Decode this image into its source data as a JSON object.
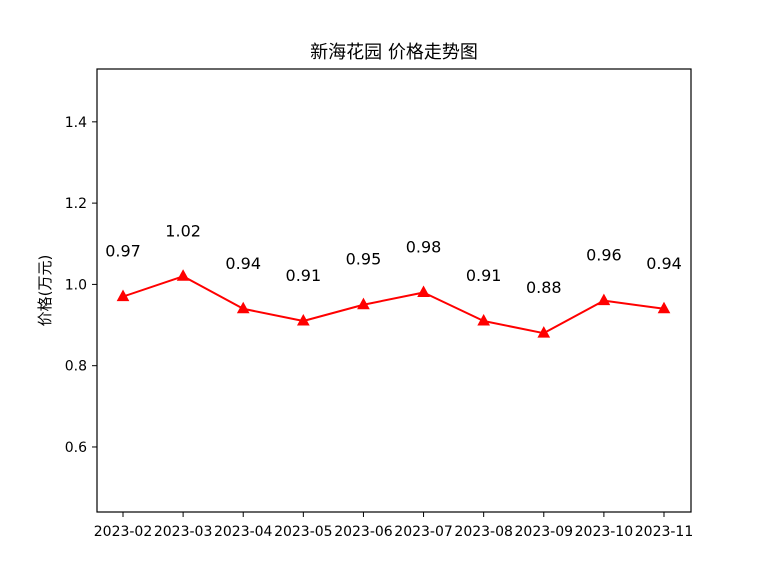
{
  "chart_data": {
    "type": "line",
    "title": "新海花园 价格走势图",
    "xlabel": "",
    "ylabel": "价格(万元)",
    "ylim": [
      0.44,
      1.53
    ],
    "y_ticks": [
      "0.6",
      "0.8",
      "1.0",
      "1.2",
      "1.4"
    ],
    "y_tick_values": [
      0.6,
      0.8,
      1.0,
      1.2,
      1.4
    ],
    "categories": [
      "2023-02",
      "2023-03",
      "2023-04",
      "2023-05",
      "2023-06",
      "2023-07",
      "2023-08",
      "2023-09",
      "2023-10",
      "2023-11"
    ],
    "series": [
      {
        "values": [
          0.97,
          1.02,
          0.94,
          0.91,
          0.95,
          0.98,
          0.91,
          0.88,
          0.96,
          0.94
        ],
        "labels": [
          "0.97",
          "1.02",
          "0.94",
          "0.91",
          "0.95",
          "0.98",
          "0.91",
          "0.88",
          "0.96",
          "0.94"
        ],
        "color": "#ff0000",
        "marker": "triangle-up"
      }
    ],
    "grid": false,
    "legend": "none"
  }
}
